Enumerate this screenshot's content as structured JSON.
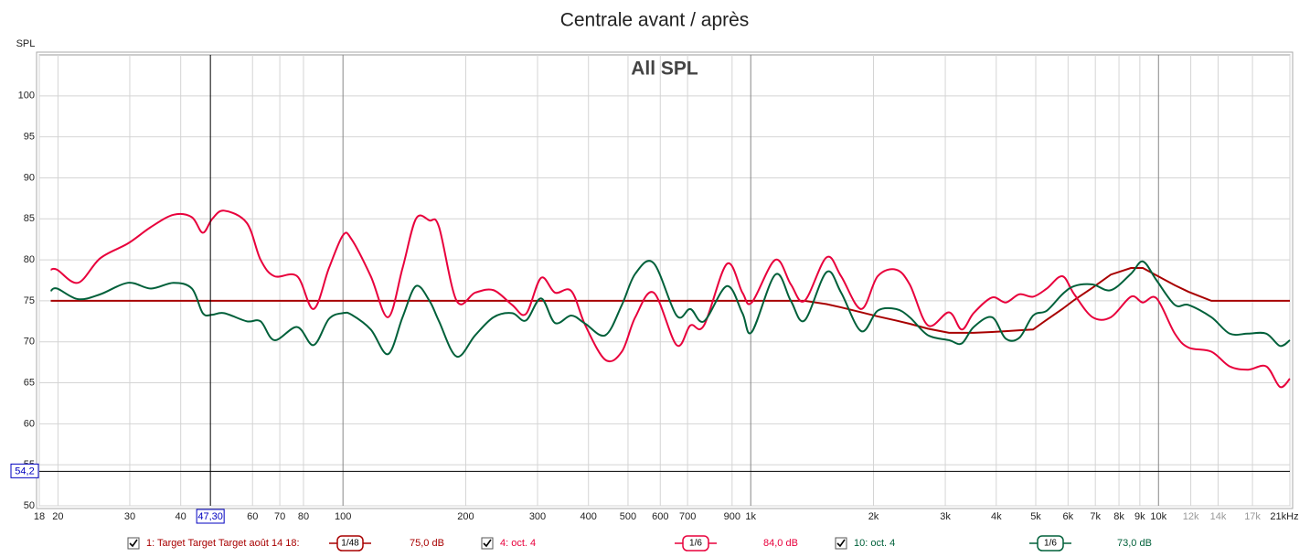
{
  "chart_data": {
    "type": "line",
    "title": "Centrale avant / après",
    "inner_title": "All SPL",
    "y_label": "SPL",
    "xscale": "log",
    "xlim": [
      18,
      21000
    ],
    "ylim": [
      50,
      105
    ],
    "xticks": [
      18,
      20,
      30,
      40,
      60,
      70,
      80,
      100,
      200,
      300,
      400,
      500,
      600,
      700,
      900,
      {
        "value": 1000,
        "label": "1k"
      },
      {
        "value": 2000,
        "label": "2k"
      },
      {
        "value": 3000,
        "label": "3k"
      },
      {
        "value": 4000,
        "label": "4k"
      },
      {
        "value": 5000,
        "label": "5k"
      },
      {
        "value": 6000,
        "label": "6k"
      },
      {
        "value": 7000,
        "label": "7k"
      },
      {
        "value": 8000,
        "label": "8k"
      },
      {
        "value": 9000,
        "label": "9k"
      },
      {
        "value": 10000,
        "label": "10k"
      },
      {
        "value": 12000,
        "label": "12k"
      },
      {
        "value": 14000,
        "label": "14k"
      },
      {
        "value": 17000,
        "label": "17k"
      },
      {
        "value": 21000,
        "label": "21kHz"
      }
    ],
    "yticks": [
      50,
      55,
      60,
      65,
      70,
      75,
      80,
      85,
      90,
      95,
      100
    ],
    "grid": true,
    "cursor": {
      "x": {
        "value": 47.3,
        "label": "47,30"
      },
      "y": {
        "value": 54.2,
        "label": "54,2"
      }
    },
    "x": [
      19.2,
      19.9,
      22.4,
      25.4,
      29.7,
      33.8,
      38.4,
      42.6,
      45.3,
      47.8,
      51.1,
      58.1,
      62.8,
      67.9,
      77.2,
      84.7,
      92.4,
      100,
      105,
      117,
      129,
      140,
      151,
      163,
      172,
      190,
      211,
      234,
      260,
      281,
      306,
      331,
      363,
      393,
      440,
      483,
      521,
      578,
      658,
      711,
      768,
      874,
      954,
      1006,
      1149,
      1254,
      1355,
      1534,
      1666,
      1866,
      2048,
      2272,
      2454,
      2720,
      3064,
      3292,
      3521,
      3904,
      4219,
      4559,
      4925,
      5323,
      5810,
      6214,
      6890,
      7641,
      8559,
      9153,
      9891,
      10966,
      11848,
      13480,
      14949,
      16574,
      18378,
      19855,
      21000
    ],
    "series": [
      {
        "name": "1: Target Target Target août 14 18:",
        "smoothing": "1/48",
        "level": "75,0 dB",
        "color": "#a80000",
        "smooth": false,
        "values": [
          75,
          75,
          75,
          75,
          75,
          75,
          75,
          75,
          75,
          75,
          75,
          75,
          75,
          75,
          75,
          75,
          75,
          75,
          75,
          75,
          75,
          75,
          75,
          75,
          75,
          75,
          75,
          75,
          75,
          75,
          75,
          75,
          75,
          75,
          75,
          75,
          75,
          75,
          75,
          75,
          75,
          75,
          75,
          75,
          75,
          75,
          75,
          74.6,
          74.2,
          73.6,
          73.1,
          72.6,
          72.2,
          71.6,
          71.1,
          71.1,
          71.1,
          71.2,
          71.3,
          71.4,
          71.5,
          72.7,
          74.0,
          75.1,
          76.6,
          78.2,
          79,
          79,
          78.1,
          76.9,
          76.1,
          75,
          75,
          75,
          75,
          75,
          75
        ]
      },
      {
        "name": "4: oct. 4",
        "smoothing": "1/6",
        "level": "84,0 dB",
        "color": "#e8003c",
        "smooth": true,
        "values": [
          78.8,
          78.8,
          77.2,
          80.2,
          82,
          84,
          85.5,
          85.2,
          83.3,
          85,
          86,
          84.5,
          80,
          78,
          78,
          74,
          79,
          83,
          82.5,
          78,
          73,
          79,
          85,
          84.8,
          84,
          75,
          76,
          76.3,
          74.5,
          73.4,
          77.8,
          76,
          76.2,
          72,
          67.8,
          68.8,
          73,
          76,
          69.6,
          72,
          72,
          79.5,
          76,
          74.8,
          80,
          77,
          75,
          80.3,
          78,
          74,
          78,
          78.8,
          77,
          72,
          73.6,
          71.5,
          73.5,
          75.4,
          74.8,
          75.8,
          75.5,
          76.5,
          78,
          75.8,
          73,
          73,
          75.5,
          74.8,
          75.3,
          71,
          69.3,
          68.8,
          67,
          66.6,
          67,
          64.5,
          65.5
        ]
      },
      {
        "name": "10: oct. 4",
        "smoothing": "1/6",
        "level": "73,0 dB",
        "color": "#00603a",
        "smooth": true,
        "values": [
          76.2,
          76.5,
          75.2,
          75.8,
          77.2,
          76.5,
          77.2,
          76.5,
          73.5,
          73.3,
          73.5,
          72.5,
          72.5,
          70.2,
          71.8,
          69.6,
          72.8,
          73.5,
          73.3,
          71.5,
          68.5,
          73,
          76.8,
          75,
          72.5,
          68.2,
          70.8,
          73,
          73.5,
          72.6,
          75.3,
          72.3,
          73.2,
          72.2,
          70.8,
          74.5,
          78.3,
          79.6,
          73.2,
          74,
          72.5,
          76.8,
          73.5,
          71.2,
          78.2,
          75,
          72.6,
          78.5,
          76,
          71.3,
          73.8,
          74,
          73,
          70.8,
          70.2,
          69.8,
          71.8,
          73,
          70.4,
          70.5,
          73.2,
          73.8,
          75.8,
          76.8,
          77,
          76.3,
          78.3,
          79.8,
          77.5,
          74.5,
          74.5,
          73,
          71,
          71,
          71,
          69.5,
          70.2
        ]
      }
    ]
  }
}
